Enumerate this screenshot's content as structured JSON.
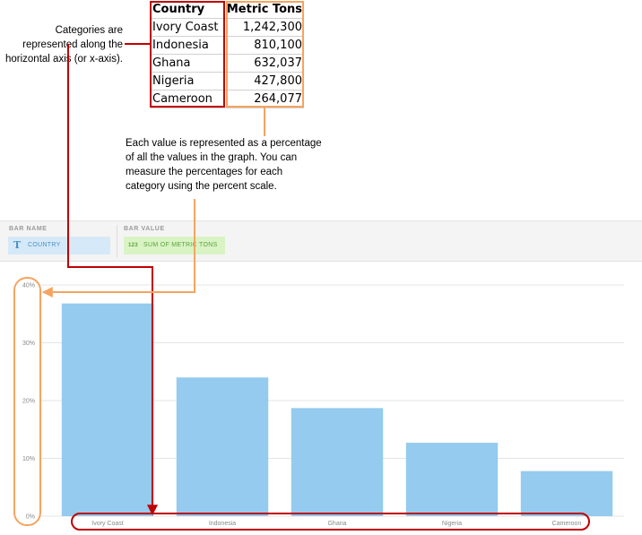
{
  "table": {
    "headers": {
      "country": "Country",
      "tons": "Metric Tons"
    },
    "rows": [
      {
        "country": "Ivory Coast",
        "tons": "1,242,300"
      },
      {
        "country": "Indonesia",
        "tons": "810,100"
      },
      {
        "country": "Ghana",
        "tons": "632,037"
      },
      {
        "country": "Nigeria",
        "tons": "427,800"
      },
      {
        "country": "Cameroon",
        "tons": "264,077"
      }
    ]
  },
  "notes": {
    "categories": [
      "Categories are",
      "represented along the",
      "horizontal axis (or x-axis)."
    ],
    "values": [
      "Each value is represented as a percentage",
      "of all the values in the graph. You can",
      "measure the percentages for each",
      "category using the percent scale."
    ]
  },
  "wells": {
    "bar_name_label": "BAR NAME",
    "bar_value_label": "BAR VALUE",
    "country_pill": "COUNTRY",
    "value_pill": "SUM OF METRIC TONS",
    "country_icon": "T",
    "value_icon": "123"
  },
  "colors": {
    "bar": "#94cbee",
    "category_highlight": "#c00000",
    "value_highlight": "#f4a460",
    "country_pill_bg": "#d6e9f8",
    "country_pill_text": "#4a90c8",
    "value_pill_bg": "#d9f3c4",
    "value_pill_text": "#5aa43a"
  },
  "chart_data": {
    "type": "bar",
    "categories": [
      "Ivory Coast",
      "Indonesia",
      "Ghana",
      "Nigeria",
      "Cameroon"
    ],
    "values": [
      36.8,
      24.0,
      18.7,
      12.7,
      7.8
    ],
    "yticks": [
      "0%",
      "10%",
      "20%",
      "30%",
      "40%"
    ],
    "ylim": [
      0,
      40
    ],
    "grid": true,
    "title": "",
    "xlabel": "",
    "ylabel": ""
  }
}
